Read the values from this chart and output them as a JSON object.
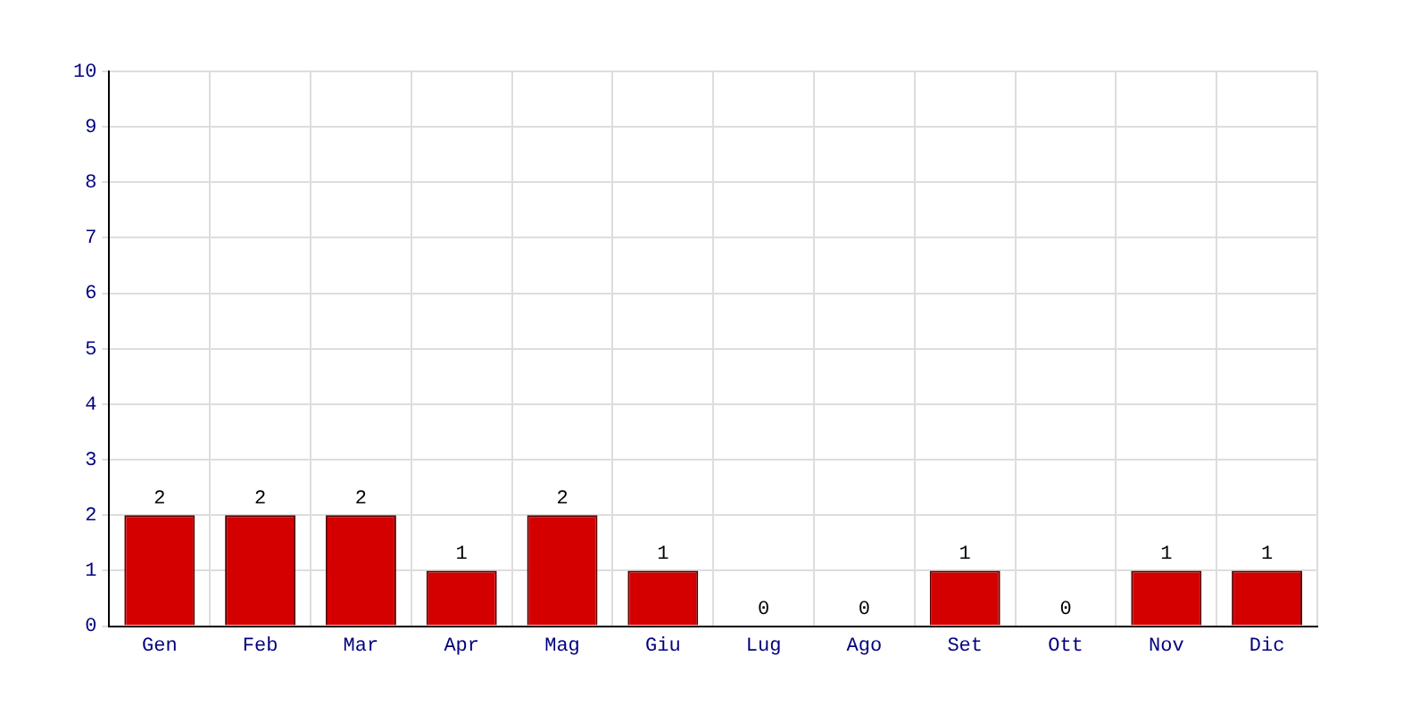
{
  "chart_data": {
    "type": "bar",
    "categories": [
      "Gen",
      "Feb",
      "Mar",
      "Apr",
      "Mag",
      "Giu",
      "Lug",
      "Ago",
      "Set",
      "Ott",
      "Nov",
      "Dic"
    ],
    "values": [
      2,
      2,
      2,
      1,
      2,
      1,
      0,
      0,
      1,
      0,
      1,
      1
    ],
    "color": "#d40000",
    "ylim": [
      0,
      10
    ],
    "yticks": [
      0,
      1,
      2,
      3,
      4,
      5,
      6,
      7,
      8,
      9,
      10
    ],
    "grid": true,
    "data_labels": true,
    "legend": false
  }
}
